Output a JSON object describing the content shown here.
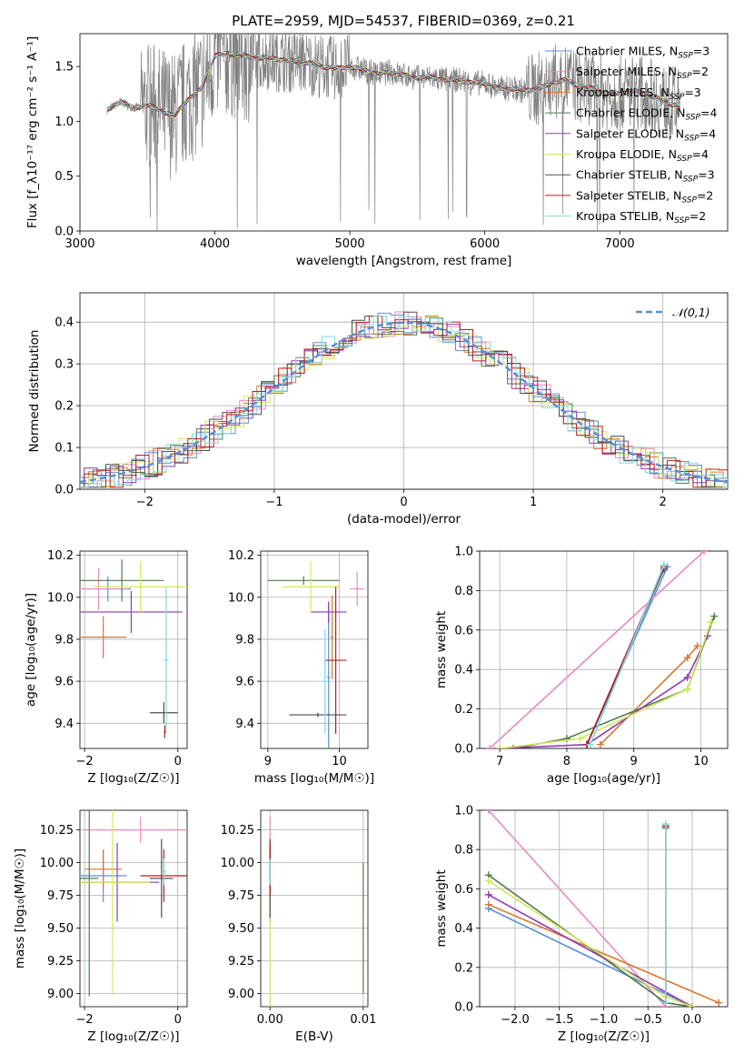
{
  "colors": {
    "chabrier_miles": "#5b8fd6",
    "salpeter_miles": "#e78ac3",
    "kroupa_miles": "#d8772f",
    "chabrier_elodie": "#4e7d4e",
    "salpeter_elodie": "#8e3cb3",
    "kroupa_elodie": "#d4e85c",
    "chabrier_stelib": "#4d4d4d",
    "salpeter_stelib": "#b51f1f",
    "kroupa_stelib": "#7fd8e0",
    "data_spectrum": "#808080"
  },
  "chart_data": [
    {
      "id": "spectrum",
      "type": "line",
      "title": "PLATE=2959, MJD=54537, FIBERID=0369, z=0.21",
      "xlabel": "wavelength [Angstrom, rest frame]",
      "ylabel": "Flux [f_λ10⁻¹⁷ erg cm⁻² s⁻¹ A⁻¹]",
      "xlim": [
        3000,
        7800
      ],
      "ylim": [
        0,
        1.8
      ],
      "xticks": [
        3000,
        4000,
        5000,
        6000,
        7000
      ],
      "yticks": [
        0.0,
        0.5,
        1.0,
        1.5
      ],
      "legend": [
        {
          "key": "chabrier_miles",
          "label": "Chabrier MILES, N_SSP=3"
        },
        {
          "key": "salpeter_miles",
          "label": "Salpeter MILES, N_SSP=2"
        },
        {
          "key": "kroupa_miles",
          "label": "Kroupa MILES, N_SSP=3"
        },
        {
          "key": "chabrier_elodie",
          "label": "Chabrier ELODIE, N_SSP=4"
        },
        {
          "key": "salpeter_elodie",
          "label": "Salpeter ELODIE, N_SSP=4"
        },
        {
          "key": "kroupa_elodie",
          "label": "Kroupa ELODIE, N_SSP=4"
        },
        {
          "key": "chabrier_stelib",
          "label": "Chabrier STELIB, N_SSP=3"
        },
        {
          "key": "salpeter_stelib",
          "label": "Salpeter STELIB, N_SSP=2"
        },
        {
          "key": "kroupa_stelib",
          "label": "Kroupa STELIB, N_SSP=2"
        }
      ],
      "legend_position": "right",
      "model_continuum": {
        "x": [
          3200,
          3300,
          3400,
          3500,
          3600,
          3700,
          3800,
          3900,
          4000,
          4100,
          4200,
          4300,
          4400,
          4500,
          4600,
          4700,
          4800,
          4900,
          5000,
          5100,
          5200,
          5300,
          5400,
          5500,
          5600,
          5700,
          5800,
          5900,
          6000,
          6100,
          6200,
          6300,
          6400,
          6500,
          6600,
          6700,
          6800,
          6900,
          7000,
          7100,
          7200,
          7300,
          7400,
          7500
        ],
        "y": [
          1.1,
          1.18,
          1.12,
          1.15,
          1.1,
          1.05,
          1.2,
          1.3,
          1.6,
          1.62,
          1.6,
          1.58,
          1.58,
          1.56,
          1.55,
          1.53,
          1.5,
          1.48,
          1.5,
          1.47,
          1.43,
          1.45,
          1.42,
          1.4,
          1.4,
          1.38,
          1.38,
          1.35,
          1.35,
          1.3,
          1.3,
          1.28,
          1.3,
          1.35,
          1.38,
          1.32,
          1.3,
          1.25,
          1.25,
          1.28,
          1.25,
          1.2,
          1.15,
          1.1
        ]
      },
      "data_range": [
        3200,
        7450
      ]
    },
    {
      "id": "residuals",
      "type": "line",
      "xlabel": "(data-model)/error",
      "ylabel": "Normed distribution",
      "xlim": [
        -2.5,
        2.5
      ],
      "ylim": [
        0,
        0.47
      ],
      "xticks": [
        -2,
        -1,
        0,
        1,
        2
      ],
      "yticks": [
        0.0,
        0.1,
        0.2,
        0.3,
        0.4
      ],
      "grid": true,
      "legend": [
        {
          "label": "𝒩(0,1)"
        }
      ],
      "legend_position": "top-right",
      "gaussian": {
        "mu": 0,
        "sigma": 1
      }
    },
    {
      "id": "age_vs_Z",
      "type": "scatter",
      "xlabel": "Z [log₁₀(Z/Z☉)]",
      "ylabel": "age  [log₁₀(age/yr)]",
      "xlim": [
        -2.1,
        0.2
      ],
      "ylim": [
        9.28,
        10.22
      ],
      "xticks": [
        -2,
        0
      ],
      "yticks": [
        9.4,
        9.6,
        9.8,
        10.0,
        10.2
      ],
      "grid": true,
      "points": [
        {
          "key": "chabrier_miles",
          "x": -1.5,
          "y": 10.04,
          "xerr": 0.5,
          "yerr": 0.06
        },
        {
          "key": "salpeter_miles",
          "x": -1.7,
          "y": 10.04,
          "xerr": 0.6,
          "yerr": 0.1
        },
        {
          "key": "kroupa_miles",
          "x": -1.6,
          "y": 9.81,
          "xerr": 0.5,
          "yerr": 0.1
        },
        {
          "key": "chabrier_elodie",
          "x": -1.2,
          "y": 10.08,
          "xerr": 0.9,
          "yerr": 0.1
        },
        {
          "key": "salpeter_elodie",
          "x": -1.0,
          "y": 9.93,
          "xerr": 1.1,
          "yerr": 0.1
        },
        {
          "key": "kroupa_elodie",
          "x": -0.8,
          "y": 10.05,
          "xerr": 1.0,
          "yerr": 0.12
        },
        {
          "key": "chabrier_stelib",
          "x": -0.3,
          "y": 9.45,
          "xerr": 0.3,
          "yerr": 0.05
        },
        {
          "key": "salpeter_stelib",
          "x": -0.28,
          "y": 9.36,
          "xerr": 0.02,
          "yerr": 0.03
        },
        {
          "key": "kroupa_stelib",
          "x": -0.25,
          "y": 9.7,
          "xerr": 0.05,
          "yerr": 0.35
        }
      ]
    },
    {
      "id": "age_vs_mass",
      "type": "scatter",
      "xlabel": "mass [log₁₀(M/M☉)]",
      "xlim": [
        8.9,
        10.4
      ],
      "ylim": [
        9.28,
        10.22
      ],
      "xticks": [
        9,
        10
      ],
      "yticks": [
        9.4,
        9.6,
        9.8,
        10.0,
        10.2
      ],
      "grid": true,
      "points": [
        {
          "key": "chabrier_miles",
          "x": 9.85,
          "y": 9.62,
          "xerr": 0.02,
          "yerr": 0.35
        },
        {
          "key": "salpeter_miles",
          "x": 10.25,
          "y": 10.04,
          "xerr": 0.1,
          "yerr": 0.08
        },
        {
          "key": "kroupa_miles",
          "x": 9.9,
          "y": 9.81,
          "xerr": 0.02,
          "yerr": 0.2
        },
        {
          "key": "chabrier_elodie",
          "x": 9.5,
          "y": 10.08,
          "xerr": 0.5,
          "yerr": 0.02
        },
        {
          "key": "salpeter_elodie",
          "x": 9.85,
          "y": 9.93,
          "xerr": 0.25,
          "yerr": 0.05
        },
        {
          "key": "kroupa_elodie",
          "x": 9.6,
          "y": 10.05,
          "xerr": 0.4,
          "yerr": 0.12
        },
        {
          "key": "chabrier_stelib",
          "x": 9.7,
          "y": 9.44,
          "xerr": 0.4,
          "yerr": 0.01
        },
        {
          "key": "salpeter_stelib",
          "x": 9.95,
          "y": 9.7,
          "xerr": 0.15,
          "yerr": 0.35
        },
        {
          "key": "kroupa_stelib",
          "x": 9.8,
          "y": 9.6,
          "xerr": 0.05,
          "yerr": 0.25
        }
      ]
    },
    {
      "id": "mass_weight_vs_age",
      "type": "line",
      "xlabel": "age  [log₁₀(age/yr)]",
      "ylabel": "mass weight",
      "xlim": [
        6.7,
        10.4
      ],
      "ylim": [
        0,
        1
      ],
      "xticks": [
        7,
        8,
        9,
        10
      ],
      "yticks": [
        0.0,
        0.2,
        0.4,
        0.6,
        0.8,
        1.0
      ],
      "grid": true,
      "series": [
        {
          "key": "chabrier_miles",
          "x": [
            8.3,
            9.5
          ],
          "y": [
            0.02,
            0.92
          ]
        },
        {
          "key": "salpeter_miles",
          "x": [
            6.85,
            10.05
          ],
          "y": [
            0.0,
            1.0
          ]
        },
        {
          "key": "kroupa_miles",
          "x": [
            8.5,
            9.8,
            9.95
          ],
          "y": [
            0.02,
            0.46,
            0.52
          ]
        },
        {
          "key": "chabrier_elodie",
          "x": [
            7.2,
            8.0,
            9.8,
            10.2
          ],
          "y": [
            0.0,
            0.05,
            0.3,
            0.67
          ]
        },
        {
          "key": "salpeter_elodie",
          "x": [
            7.0,
            8.3,
            9.8,
            10.1
          ],
          "y": [
            0.0,
            0.02,
            0.36,
            0.57
          ]
        },
        {
          "key": "kroupa_elodie",
          "x": [
            7.0,
            8.2,
            9.8,
            10.15
          ],
          "y": [
            0.0,
            0.05,
            0.3,
            0.64
          ]
        },
        {
          "key": "chabrier_stelib",
          "x": [
            8.3,
            9.45
          ],
          "y": [
            0.02,
            0.91
          ]
        },
        {
          "key": "salpeter_stelib",
          "x": [
            8.3,
            9.45
          ],
          "y": [
            0.02,
            0.92
          ]
        },
        {
          "key": "kroupa_stelib",
          "x": [
            8.35,
            9.45
          ],
          "y": [
            0.02,
            0.93
          ]
        }
      ]
    },
    {
      "id": "mass_vs_Z",
      "type": "scatter",
      "xlabel": "Z [log₁₀(Z/Z☉)]",
      "ylabel": "mass [log₁₀(M/M☉)]",
      "xlim": [
        -2.1,
        0.2
      ],
      "ylim": [
        8.9,
        10.4
      ],
      "xticks": [
        -2,
        0
      ],
      "yticks": [
        9.0,
        9.25,
        9.5,
        9.75,
        10.0,
        10.25
      ],
      "grid": true,
      "points": [
        {
          "key": "chabrier_miles",
          "x": -1.6,
          "y": 9.9,
          "xerr": 0.5,
          "yerr": 0.2
        },
        {
          "key": "salpeter_miles",
          "x": -0.8,
          "y": 10.25,
          "xerr": 1.2,
          "yerr": 0.1
        },
        {
          "key": "kroupa_miles",
          "x": -1.6,
          "y": 9.95,
          "xerr": 0.4,
          "yerr": 0.15
        },
        {
          "key": "chabrier_elodie",
          "x": -1.9,
          "y": 9.88,
          "xerr": 0.2,
          "yerr": 0.9
        },
        {
          "key": "salpeter_elodie",
          "x": -1.3,
          "y": 9.85,
          "xerr": 0.9,
          "yerr": 0.3
        },
        {
          "key": "kroupa_elodie",
          "x": -1.4,
          "y": 9.85,
          "xerr": 0.8,
          "yerr": 0.85
        },
        {
          "key": "chabrier_stelib",
          "x": -0.35,
          "y": 9.88,
          "xerr": 0.25,
          "yerr": 0.3
        },
        {
          "key": "salpeter_stelib",
          "x": -0.3,
          "y": 9.9,
          "xerr": 0.5,
          "yerr": 0.2
        },
        {
          "key": "kroupa_stelib",
          "x": -0.3,
          "y": 9.93,
          "xerr": 0.05,
          "yerr": 0.1
        }
      ]
    },
    {
      "id": "mass_vs_ebv",
      "type": "scatter",
      "xlabel": "E(B-V)",
      "xlim": [
        -0.001,
        0.0105
      ],
      "ylim": [
        8.9,
        10.4
      ],
      "xticks": [
        0.0,
        0.01
      ],
      "yticks": [
        9.0,
        9.25,
        9.5,
        9.75,
        10.0,
        10.25
      ],
      "grid": true,
      "points": [
        {
          "key": "chabrier_miles",
          "x": 0.0,
          "y": 9.9,
          "xerr": 0,
          "yerr": 0.2
        },
        {
          "key": "salpeter_miles",
          "x": 0.0,
          "y": 10.25,
          "xerr": 0,
          "yerr": 0.1
        },
        {
          "key": "kroupa_miles",
          "x": 0.0,
          "y": 9.95,
          "xerr": 0,
          "yerr": 0.15
        },
        {
          "key": "chabrier_elodie",
          "x": 0.01,
          "y": 9.5,
          "xerr": 0,
          "yerr": 0.5
        },
        {
          "key": "salpeter_elodie",
          "x": 0.0,
          "y": 9.85,
          "xerr": 0,
          "yerr": 0.3
        },
        {
          "key": "kroupa_elodie",
          "x": 0.0,
          "y": 9.45,
          "xerr": 0,
          "yerr": 0.55
        },
        {
          "key": "chabrier_stelib",
          "x": 0.0,
          "y": 9.88,
          "xerr": 0,
          "yerr": 0.3
        },
        {
          "key": "salpeter_stelib",
          "x": 0.0,
          "y": 9.95,
          "xerr": 0,
          "yerr": 0.2
        },
        {
          "key": "kroupa_stelib",
          "x": 0.0,
          "y": 9.93,
          "xerr": 0,
          "yerr": 0.1
        }
      ]
    },
    {
      "id": "mass_weight_vs_Z",
      "type": "line",
      "xlabel": "Z [log₁₀(Z/Z☉)]",
      "ylabel": "mass weight",
      "xlim": [
        -2.4,
        0.4
      ],
      "ylim": [
        0,
        1
      ],
      "xticks": [
        -2.0,
        -1.5,
        -1.0,
        -0.5,
        0.0
      ],
      "yticks": [
        0.0,
        0.2,
        0.4,
        0.6,
        0.8,
        1.0
      ],
      "grid": true,
      "series": [
        {
          "key": "chabrier_miles",
          "x": [
            -2.3,
            0.0
          ],
          "y": [
            0.5,
            0.0
          ]
        },
        {
          "key": "salpeter_miles",
          "x": [
            -2.3,
            -0.3
          ],
          "y": [
            1.0,
            0.0
          ]
        },
        {
          "key": "kroupa_miles",
          "x": [
            -2.3,
            0.3
          ],
          "y": [
            0.52,
            0.02
          ]
        },
        {
          "key": "chabrier_elodie",
          "x": [
            -2.3,
            -0.3,
            0.0
          ],
          "y": [
            0.67,
            0.02,
            0.0
          ]
        },
        {
          "key": "salpeter_elodie",
          "x": [
            -2.3,
            0.0
          ],
          "y": [
            0.57,
            0.0
          ]
        },
        {
          "key": "kroupa_elodie",
          "x": [
            -2.3,
            -0.3,
            0.0
          ],
          "y": [
            0.64,
            0.05,
            0.0
          ]
        },
        {
          "key": "chabrier_stelib",
          "x": [
            -0.3,
            -0.3
          ],
          "y": [
            0.02,
            0.91
          ]
        },
        {
          "key": "salpeter_stelib",
          "x": [
            -0.3,
            -0.3
          ],
          "y": [
            0.02,
            0.92
          ]
        },
        {
          "key": "kroupa_stelib",
          "x": [
            -0.3,
            -0.3
          ],
          "y": [
            0.02,
            0.93
          ]
        }
      ]
    }
  ]
}
